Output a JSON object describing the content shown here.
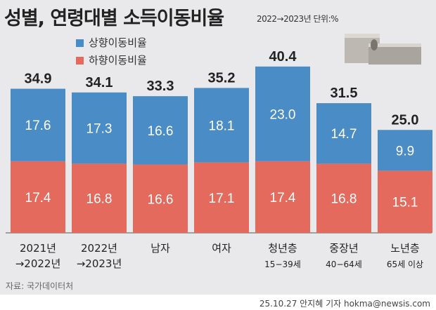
{
  "title": "성별, 연령대별 소득이동비율",
  "subtitle": "2022→2023년 단위:%",
  "source": "자료: 국가데이터처",
  "credit": "25.10.27 안지혜 기자 hokma@newsis.com",
  "chart_data": {
    "type": "bar",
    "stacked": true,
    "categories": [
      [
        "2021년",
        "→2022년"
      ],
      [
        "2022년",
        "→2023년"
      ],
      [
        "남자",
        ""
      ],
      [
        "여자",
        ""
      ],
      [
        "청년층",
        "15−39세"
      ],
      [
        "중장년",
        "40−64세"
      ],
      [
        "노년층",
        "65세 이상"
      ]
    ],
    "series": [
      {
        "name": "하향이동비율",
        "color": "#e36a5d",
        "values": [
          17.4,
          16.8,
          16.6,
          17.1,
          17.4,
          16.8,
          15.1
        ]
      },
      {
        "name": "상향이동비율",
        "color": "#4a8cc6",
        "values": [
          17.6,
          17.3,
          16.6,
          18.1,
          23.0,
          14.7,
          9.9
        ]
      }
    ],
    "totals": [
      34.9,
      34.1,
      33.3,
      35.2,
      40.4,
      31.5,
      25.0
    ],
    "legend": [
      "상향이동비율",
      "하향이동비율"
    ],
    "legend_position": "top-left",
    "grid": false
  }
}
